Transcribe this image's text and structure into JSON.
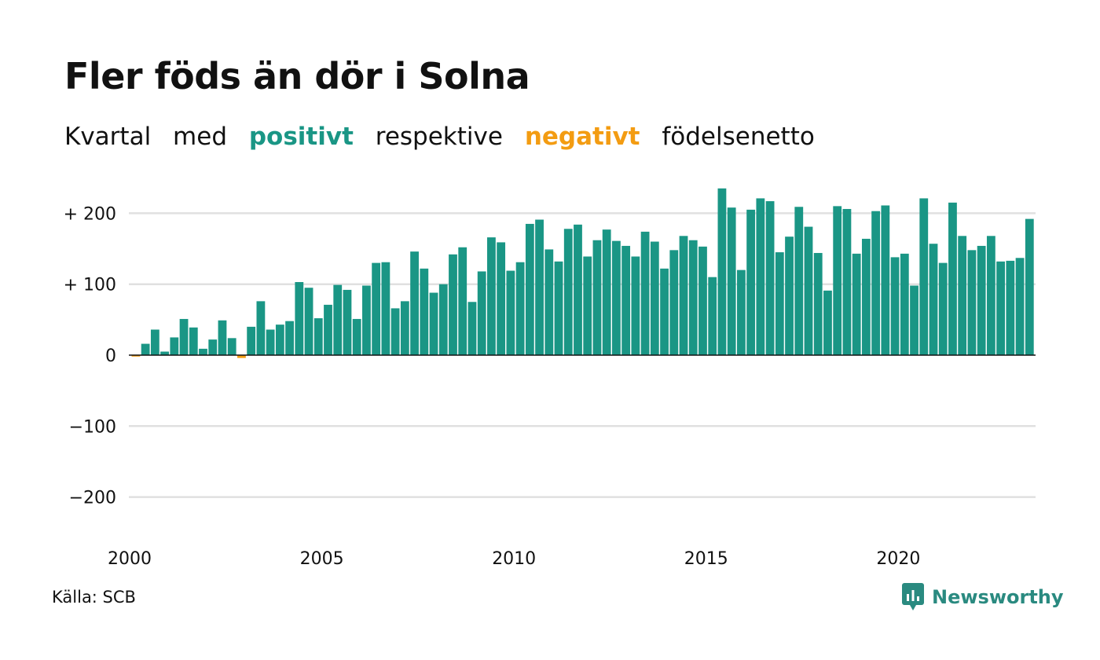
{
  "title": "Fler föds än dör i Solna",
  "subtitle": {
    "part1": "Kvartal",
    "part2": "med",
    "positive_word": "positivt",
    "part3": "respektive",
    "negative_word": "negativt",
    "part4": "födelsenetto"
  },
  "colors": {
    "positive": "#1a9685",
    "negative": "#f39c12",
    "grid": "#e0e0e0",
    "brand": "#2a8a80"
  },
  "source": "Källa: SCB",
  "brand": {
    "name": "Newsworthy",
    "icon": "newsworthy-logo-icon"
  },
  "chart_data": {
    "type": "bar",
    "title": "Fler föds än dör i Solna",
    "subtitle": "Kvartal med positivt respektive negativt födelsenetto",
    "xlabel": "",
    "ylabel": "",
    "ylim": [
      -250,
      240
    ],
    "y_ticks": [
      {
        "value": 200,
        "label": "+ 200"
      },
      {
        "value": 100,
        "label": "+ 100"
      },
      {
        "value": 0,
        "label": "0"
      },
      {
        "value": -100,
        "label": "−100"
      },
      {
        "value": -200,
        "label": "−200"
      }
    ],
    "x_ticks": [
      {
        "value": 2000,
        "label": "2000"
      },
      {
        "value": 2005,
        "label": "2005"
      },
      {
        "value": 2010,
        "label": "2010"
      },
      {
        "value": 2015,
        "label": "2015"
      },
      {
        "value": 2020,
        "label": "2020"
      }
    ],
    "grid": true,
    "legend": "none",
    "series": [
      {
        "name": "födelsenetto",
        "first_period": "2000 Q1",
        "frequency": "quarterly",
        "values": [
          -2,
          16,
          36,
          5,
          25,
          51,
          39,
          9,
          22,
          49,
          24,
          -4,
          40,
          76,
          36,
          43,
          48,
          103,
          95,
          52,
          71,
          99,
          92,
          51,
          98,
          130,
          131,
          66,
          76,
          146,
          122,
          88,
          100,
          142,
          152,
          75,
          118,
          166,
          159,
          119,
          131,
          185,
          191,
          149,
          132,
          178,
          184,
          139,
          162,
          177,
          161,
          154,
          139,
          174,
          160,
          122,
          148,
          168,
          162,
          153,
          110,
          235,
          208,
          120,
          205,
          221,
          217,
          145,
          167,
          209,
          181,
          144,
          91,
          210,
          206,
          143,
          164,
          203,
          211,
          138,
          143,
          98,
          221,
          157,
          130,
          215,
          168,
          148,
          154,
          168,
          132,
          133,
          137,
          192
        ]
      }
    ]
  }
}
